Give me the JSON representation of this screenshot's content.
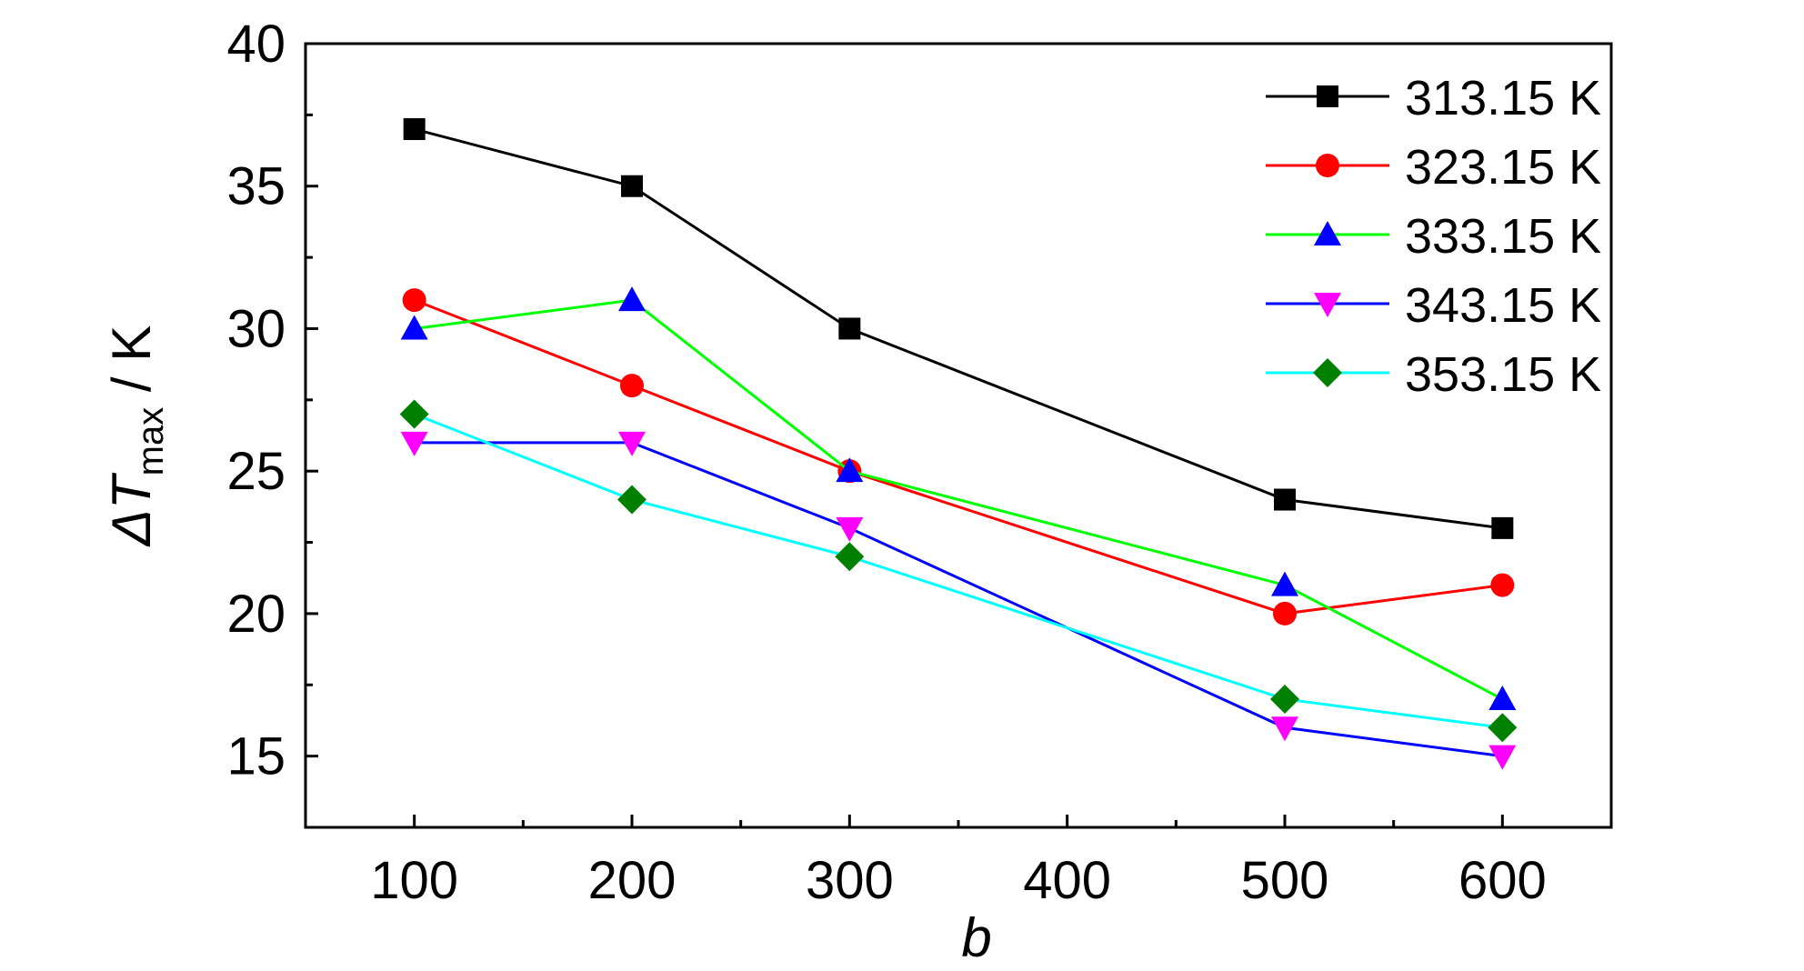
{
  "chart_data": {
    "type": "line",
    "xlabel": "b",
    "ylabel_main": "ΔT",
    "ylabel_sub": "max",
    "ylabel_unit": " / K",
    "xlim": [
      50,
      650
    ],
    "ylim": [
      12.5,
      40
    ],
    "x_ticks": [
      100,
      200,
      300,
      400,
      500,
      600
    ],
    "y_ticks": [
      15,
      20,
      25,
      30,
      35,
      40
    ],
    "x_minor": [
      150,
      250,
      350,
      450,
      550
    ],
    "y_minor": [
      17.5,
      22.5,
      27.5,
      32.5,
      37.5
    ],
    "grid": false,
    "legend_position": "top-right",
    "series": [
      {
        "name": "313.15 K",
        "color": "#000000",
        "marker": "square",
        "x": [
          100,
          200,
          300,
          500,
          600
        ],
        "values": [
          37,
          35,
          30,
          24,
          23
        ]
      },
      {
        "name": "323.15 K",
        "color": "#ff0000",
        "marker": "circle",
        "x": [
          100,
          200,
          300,
          500,
          600
        ],
        "values": [
          31,
          28,
          25,
          20,
          21
        ]
      },
      {
        "name": "333.15 K",
        "color": "#00ff00",
        "marker_color": "#0000ff",
        "marker": "triangle-up",
        "x": [
          100,
          200,
          300,
          500,
          600
        ],
        "values": [
          30,
          31,
          25,
          21,
          17
        ]
      },
      {
        "name": "343.15 K",
        "color": "#0000ff",
        "marker_color": "#ff00ff",
        "marker": "triangle-down",
        "x": [
          100,
          200,
          300,
          500,
          600
        ],
        "values": [
          26,
          26,
          23,
          16,
          15
        ]
      },
      {
        "name": "353.15 K",
        "color": "#00ffff",
        "marker_color": "#008000",
        "marker": "diamond",
        "x": [
          100,
          200,
          300,
          500,
          600
        ],
        "values": [
          27,
          24,
          22,
          17,
          16
        ]
      }
    ]
  }
}
